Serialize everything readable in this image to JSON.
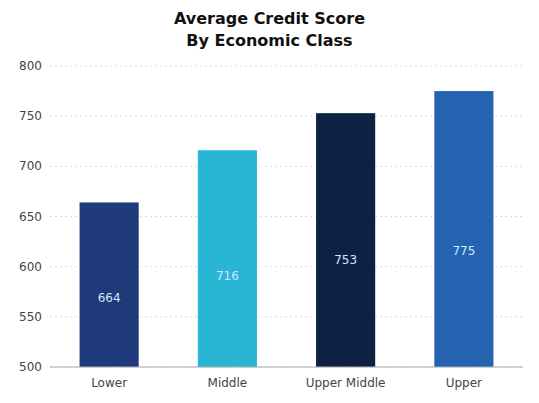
{
  "chart_data": {
    "type": "bar",
    "title": "Average Credit Score",
    "subtitle": "By Economic Class",
    "categories": [
      "Lower",
      "Middle",
      "Upper Middle",
      "Upper"
    ],
    "values": [
      664,
      716,
      753,
      775
    ],
    "colors": [
      "#1e3a7a",
      "#29b6d4",
      "#0d2145",
      "#2563b0"
    ],
    "ylim": [
      500,
      800
    ],
    "yticks": [
      500,
      550,
      600,
      650,
      700,
      750,
      800
    ],
    "grid": true,
    "data_labels": true
  }
}
